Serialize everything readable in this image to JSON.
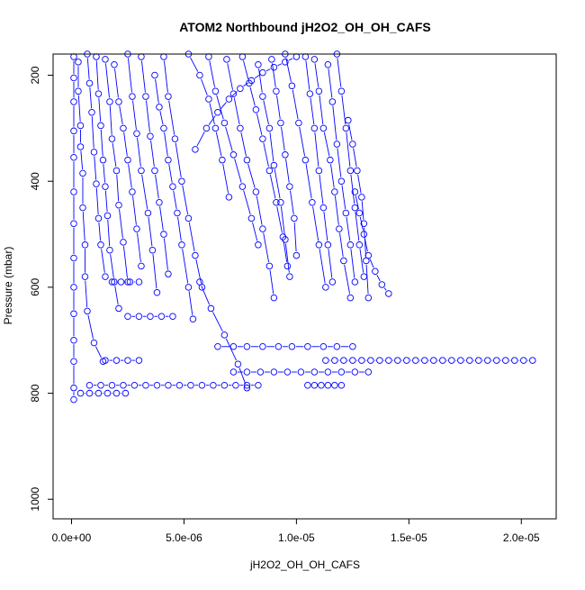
{
  "chart_data": {
    "type": "scatter",
    "title": "ATOM2 Northbound jH2O2_OH_OH_CAFS",
    "xlabel": "jH2O2_OH_OH_CAFS",
    "ylabel": "Pressure (mbar)",
    "xlim": [
      -8.2e-07,
      2.155e-05
    ],
    "ylim": [
      1037,
      160
    ],
    "y_reversed": true,
    "grid": false,
    "legend": "none",
    "x_ticks": [
      {
        "value": 0,
        "label": "0.0e+00"
      },
      {
        "value": 5e-06,
        "label": "5.0e-06"
      },
      {
        "value": 1e-05,
        "label": "1.0e-05"
      },
      {
        "value": 1.5e-05,
        "label": "1.5e-05"
      },
      {
        "value": 2e-05,
        "label": "2.0e-05"
      }
    ],
    "y_ticks": [
      {
        "value": 200,
        "label": "200"
      },
      {
        "value": 400,
        "label": "400"
      },
      {
        "value": 600,
        "label": "600"
      },
      {
        "value": 800,
        "label": "800"
      },
      {
        "value": 1000,
        "label": "1000"
      }
    ],
    "marker": "open-circle",
    "series": [
      {
        "color": "#0000ff",
        "x": [
          1e-07,
          1e-07,
          1e-07,
          1e-07,
          1e-07,
          1e-07,
          1e-07,
          1e-07,
          1e-07,
          1e-07,
          1e-07,
          1e-07,
          1e-07,
          1e-07
        ],
        "y": [
          165,
          205,
          250,
          305,
          355,
          420,
          480,
          545,
          600,
          650,
          700,
          740,
          790,
          812
        ]
      },
      {
        "color": "#0000ff",
        "x": [
          3e-07,
          3e-07,
          4e-07,
          4e-07,
          5e-07,
          5e-07,
          6e-07,
          6e-07,
          7e-07,
          1e-06,
          1.4e-06
        ],
        "y": [
          175,
          230,
          295,
          335,
          385,
          450,
          520,
          580,
          645,
          705,
          740
        ]
      },
      {
        "color": "#0000ff",
        "x": [
          7e-07,
          8e-07,
          9e-07,
          1e-06,
          1.1e-06,
          1.2e-06,
          1.3e-06,
          1.5e-06
        ],
        "y": [
          160,
          215,
          270,
          345,
          405,
          470,
          520,
          580
        ]
      },
      {
        "color": "#0000ff",
        "x": [
          1.1e-06,
          1.2e-06,
          1.3e-06,
          1.4e-06,
          1.5e-06,
          1.6e-06,
          1.7e-06,
          1.9e-06,
          2.1e-06
        ],
        "y": [
          165,
          235,
          295,
          360,
          410,
          465,
          530,
          590,
          640
        ]
      },
      {
        "color": "#0000ff",
        "x": [
          1.5e-06,
          1.7e-06,
          1.8e-06,
          2e-06,
          2.1e-06,
          2.3e-06,
          2.5e-06
        ],
        "y": [
          170,
          250,
          320,
          380,
          445,
          515,
          590
        ]
      },
      {
        "color": "#0000ff",
        "x": [
          1.9e-06,
          2.1e-06,
          2.3e-06,
          2.5e-06,
          2.7e-06,
          2.9e-06,
          3.1e-06
        ],
        "y": [
          180,
          250,
          300,
          360,
          420,
          490,
          560
        ]
      },
      {
        "color": "#0000ff",
        "x": [
          2.5e-06,
          2.7e-06,
          2.9e-06,
          3.1e-06,
          3.4e-06,
          3.6e-06,
          3.8e-06
        ],
        "y": [
          160,
          240,
          310,
          380,
          460,
          530,
          610
        ]
      },
      {
        "color": "#0000ff",
        "x": [
          3.1e-06,
          3.3e-06,
          3.5e-06,
          3.7e-06,
          3.9e-06,
          4.1e-06,
          4.3e-06
        ],
        "y": [
          165,
          240,
          315,
          380,
          440,
          500,
          575
        ]
      },
      {
        "color": "#0000ff",
        "x": [
          3.7e-06,
          3.9e-06,
          4.1e-06,
          4.3e-06,
          4.5e-06,
          4.7e-06,
          4.9e-06,
          5.2e-06,
          5.4e-06
        ],
        "y": [
          200,
          260,
          300,
          360,
          410,
          460,
          520,
          600,
          660
        ]
      },
      {
        "color": "#0000ff",
        "x": [
          4.1e-06,
          4.3e-06,
          4.6e-06,
          4.9e-06,
          5.2e-06,
          5.5e-06,
          5.8e-06
        ],
        "y": [
          165,
          240,
          320,
          400,
          470,
          540,
          600
        ]
      },
      {
        "color": "#0000ff",
        "x": [
          5.2e-06,
          5.7e-06,
          6.1e-06,
          6.4e-06,
          6.7e-06,
          7e-06
        ],
        "y": [
          160,
          200,
          245,
          300,
          360,
          430
        ]
      },
      {
        "color": "#0000ff",
        "x": [
          6.1e-06,
          6.4e-06,
          6.8e-06,
          7.2e-06,
          7.6e-06,
          8e-06,
          8.3e-06
        ],
        "y": [
          165,
          230,
          290,
          350,
          410,
          470,
          520
        ]
      },
      {
        "color": "#0000ff",
        "x": [
          6.9e-06,
          7.2e-06,
          7.5e-06,
          7.8e-06,
          8.2e-06,
          8.5e-06,
          8.8e-06,
          9e-06
        ],
        "y": [
          170,
          235,
          300,
          360,
          420,
          490,
          560,
          620
        ]
      },
      {
        "color": "#0000ff",
        "x": [
          7.6e-06,
          7.9e-06,
          8.2e-06,
          8.5e-06,
          8.8e-06,
          9.1e-06,
          9.4e-06,
          9.6e-06
        ],
        "y": [
          165,
          215,
          265,
          320,
          380,
          440,
          505,
          560
        ]
      },
      {
        "color": "#0000ff",
        "x": [
          8.3e-06,
          8.5e-06,
          8.8e-06,
          9e-06,
          9.3e-06,
          9.5e-06,
          9.7e-06
        ],
        "y": [
          180,
          240,
          300,
          370,
          440,
          510,
          580
        ]
      },
      {
        "color": "#0000ff",
        "x": [
          8.9e-06,
          9.1e-06,
          9.3e-06,
          9.5e-06,
          9.7e-06,
          9.9e-06,
          1e-05
        ],
        "y": [
          170,
          230,
          290,
          350,
          410,
          470,
          540
        ]
      },
      {
        "color": "#0000ff",
        "x": [
          9.5e-06,
          9.8e-06,
          1.01e-05,
          1.04e-05,
          1.07e-05,
          1.1e-05,
          1.13e-05
        ],
        "y": [
          160,
          220,
          290,
          360,
          440,
          520,
          600
        ]
      },
      {
        "color": "#0000ff",
        "x": [
          1.04e-05,
          1.06e-05,
          1.08e-05,
          1.1e-05,
          1.12e-05,
          1.14e-05,
          1.16e-05
        ],
        "y": [
          165,
          235,
          300,
          380,
          450,
          520,
          590
        ]
      },
      {
        "color": "#0000ff",
        "x": [
          1.08e-05,
          1.1e-05,
          1.12e-05,
          1.15e-05,
          1.17e-05,
          1.19e-05,
          1.21e-05,
          1.24e-05
        ],
        "y": [
          170,
          230,
          300,
          360,
          420,
          490,
          550,
          620
        ]
      },
      {
        "color": "#0000ff",
        "x": [
          1.14e-05,
          1.16e-05,
          1.18e-05,
          1.2e-05,
          1.22e-05,
          1.24e-05,
          1.26e-05
        ],
        "y": [
          180,
          250,
          330,
          400,
          460,
          520,
          590
        ]
      },
      {
        "color": "#0000ff",
        "x": [
          1.18e-05,
          1.2e-05,
          1.22e-05,
          1.24e-05,
          1.26e-05,
          1.28e-05,
          1.3e-05
        ],
        "y": [
          160,
          230,
          300,
          380,
          450,
          520,
          580
        ]
      },
      {
        "color": "#0000ff",
        "x": [
          1.23e-05,
          1.25e-05,
          1.27e-05,
          1.29e-05,
          1.3e-05,
          1.31e-05,
          1.32e-05
        ],
        "y": [
          285,
          330,
          380,
          430,
          480,
          550,
          620
        ]
      },
      {
        "color": "#0000ff",
        "x": [
          1.26e-05,
          1.28e-05,
          1.3e-05,
          1.32e-05,
          1.35e-05,
          1.38e-05,
          1.41e-05
        ],
        "y": [
          420,
          460,
          500,
          540,
          570,
          595,
          612
        ]
      },
      {
        "color": "#0000ff",
        "x": [
          5.5e-06,
          6e-06,
          6.5e-06,
          7e-06,
          7.5e-06,
          8e-06,
          8.5e-06,
          9e-06,
          9.5e-06,
          1e-05
        ],
        "y": [
          340,
          300,
          270,
          245,
          225,
          210,
          195,
          185,
          175,
          165
        ]
      },
      {
        "color": "#0000ff",
        "x": [
          5.7e-06,
          6.2e-06,
          6.8e-06,
          7.4e-06,
          7.8e-06
        ],
        "y": [
          590,
          640,
          690,
          745,
          790
        ]
      },
      {
        "color": "#0000ff",
        "x": [
          8e-07,
          1.3e-06,
          1.8e-06,
          2.3e-06,
          2.8e-06,
          3.3e-06,
          3.8e-06,
          4.3e-06,
          4.8e-06,
          5.3e-06,
          5.8e-06,
          6.3e-06,
          6.8e-06,
          7.3e-06,
          7.8e-06,
          8.3e-06
        ],
        "y": [
          785,
          785,
          785,
          785,
          785,
          785,
          785,
          785,
          785,
          785,
          785,
          785,
          785,
          785,
          785,
          785
        ]
      },
      {
        "color": "#0000ff",
        "x": [
          4e-07,
          8e-07,
          1.2e-06,
          1.6e-06,
          2e-06,
          2.4e-06
        ],
        "y": [
          800,
          800,
          800,
          800,
          800,
          800
        ]
      },
      {
        "color": "#0000ff",
        "x": [
          2.5e-06,
          3e-06,
          3.5e-06,
          4e-06,
          4.5e-06
        ],
        "y": [
          655,
          655,
          655,
          655,
          655
        ]
      },
      {
        "color": "#0000ff",
        "x": [
          1.8e-06,
          2.2e-06,
          2.6e-06,
          3e-06
        ],
        "y": [
          590,
          590,
          590,
          590
        ]
      },
      {
        "color": "#0000ff",
        "x": [
          6.5e-06,
          7.2e-06,
          7.8e-06,
          8.5e-06,
          9.2e-06,
          9.8e-06,
          1.05e-05,
          1.12e-05,
          1.18e-05,
          1.25e-05
        ],
        "y": [
          712,
          712,
          712,
          712,
          712,
          712,
          712,
          712,
          712,
          712
        ]
      },
      {
        "color": "#0000ff",
        "x": [
          7.2e-06,
          7.8e-06,
          8.4e-06,
          9e-06,
          9.6e-06,
          1.02e-05,
          1.08e-05,
          1.14e-05,
          1.2e-05,
          1.26e-05,
          1.32e-05
        ],
        "y": [
          760,
          760,
          760,
          760,
          760,
          760,
          760,
          760,
          760,
          760,
          760
        ]
      },
      {
        "color": "#0000ff",
        "x": [
          1.5e-06,
          2e-06,
          2.5e-06,
          3e-06
        ],
        "y": [
          738,
          738,
          738,
          738
        ]
      },
      {
        "color": "#0000ff",
        "x": [
          1.13e-05,
          1.17e-05,
          1.21e-05,
          1.25e-05,
          1.29e-05,
          1.33e-05,
          1.37e-05,
          1.41e-05,
          1.45e-05,
          1.49e-05,
          1.53e-05,
          1.57e-05,
          1.61e-05,
          1.65e-05,
          1.69e-05,
          1.73e-05,
          1.77e-05,
          1.81e-05,
          1.85e-05,
          1.89e-05,
          1.93e-05,
          1.97e-05,
          2.01e-05,
          2.05e-05
        ],
        "y": [
          738,
          738,
          738,
          738,
          738,
          738,
          738,
          738,
          738,
          738,
          738,
          738,
          738,
          738,
          738,
          738,
          738,
          738,
          738,
          738,
          738,
          738,
          738,
          738
        ]
      },
      {
        "color": "#0000ff",
        "x": [
          1.05e-05,
          1.08e-05,
          1.11e-05,
          1.14e-05,
          1.17e-05,
          1.2e-05
        ],
        "y": [
          785,
          785,
          785,
          785,
          785,
          785
        ]
      }
    ]
  }
}
